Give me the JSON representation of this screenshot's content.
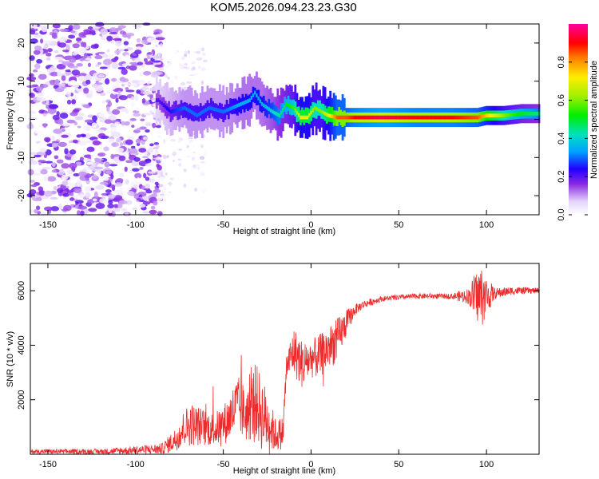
{
  "title": "KOM5.2026.094.23.23.G30",
  "colorbar": {
    "label": "Normalized spectral amplitude",
    "range": [
      0.0,
      1.0
    ],
    "ticks": [
      0.0,
      0.2,
      0.4,
      0.6,
      0.8
    ],
    "tick_labels": [
      "0.0",
      "0.2",
      "0.4",
      "0.6",
      "0.8"
    ]
  },
  "chart_data": [
    {
      "type": "heatmap",
      "name": "spectrogram",
      "xlabel": "Height of straight line (km)",
      "ylabel": "Frequency (Hz)",
      "xlim": [
        -160,
        130
      ],
      "ylim": [
        -25,
        25
      ],
      "xticks": [
        -150,
        -100,
        -50,
        0,
        50,
        100
      ],
      "xtick_labels": [
        "-150",
        "-100",
        "-50",
        "0",
        "50",
        "100"
      ],
      "yticks": [
        -20,
        -10,
        0,
        10,
        20
      ],
      "ytick_labels": [
        "-20",
        "-10",
        "0",
        "10",
        "20"
      ],
      "noise_region": {
        "x_range": [
          -160,
          -85
        ],
        "y_range": [
          -25,
          25
        ],
        "amplitude": 0.2
      },
      "ridge": {
        "x": [
          -87,
          -80,
          -72,
          -65,
          -58,
          -50,
          -45,
          -40,
          -35,
          -32,
          -28,
          -22,
          -18,
          -14,
          -10,
          -6,
          -2,
          2,
          6,
          10,
          15,
          20,
          25,
          40,
          60,
          80,
          95,
          100,
          110,
          120,
          130
        ],
        "freq": [
          5,
          2,
          3,
          1,
          3,
          2,
          3,
          4,
          5,
          7,
          4,
          2,
          1,
          4,
          3,
          0.5,
          0.5,
          3,
          2,
          1,
          0.5,
          0.5,
          0.5,
          0.5,
          0.5,
          0.5,
          0.5,
          1,
          1,
          1.5,
          1.5
        ],
        "amplitude": [
          0.2,
          0.25,
          0.3,
          0.3,
          0.3,
          0.3,
          0.32,
          0.35,
          0.35,
          0.35,
          0.35,
          0.4,
          0.45,
          0.5,
          0.55,
          0.7,
          0.7,
          0.6,
          0.6,
          0.7,
          0.85,
          0.85,
          0.9,
          0.95,
          0.9,
          0.9,
          0.85,
          0.75,
          0.6,
          0.5,
          0.45
        ]
      }
    },
    {
      "type": "line",
      "name": "snr",
      "color": "#ee2b2b",
      "xlabel": "Height of straight line (km)",
      "ylabel": "SNR (10 * v/v)",
      "xlim": [
        -160,
        130
      ],
      "ylim": [
        0,
        7000
      ],
      "xticks": [
        -150,
        -100,
        -50,
        0,
        50,
        100
      ],
      "xtick_labels": [
        "-150",
        "-100",
        "-50",
        "0",
        "50",
        "100"
      ],
      "yticks": [
        2000,
        4000,
        6000
      ],
      "ytick_labels": [
        "2000",
        "4000",
        "6000"
      ],
      "envelope": {
        "x": [
          -160,
          -120,
          -100,
          -85,
          -78,
          -72,
          -68,
          -62,
          -55,
          -48,
          -42,
          -36,
          -32,
          -28,
          -25,
          -20,
          -16,
          -14,
          -10,
          -5,
          0,
          5,
          10,
          15,
          20,
          25,
          30,
          40,
          60,
          80,
          90,
          93,
          97,
          100,
          105,
          115,
          130
        ],
        "mean": [
          100,
          100,
          150,
          200,
          500,
          1000,
          1100,
          1000,
          900,
          1200,
          1800,
          1400,
          2000,
          1500,
          1200,
          700,
          800,
          3200,
          3800,
          3300,
          3500,
          3600,
          3900,
          4200,
          4800,
          5300,
          5500,
          5700,
          5800,
          5800,
          5800,
          5800,
          5800,
          5800,
          5900,
          6000,
          6000
        ],
        "spread": [
          80,
          100,
          150,
          200,
          400,
          700,
          800,
          700,
          600,
          800,
          1100,
          1000,
          1400,
          1400,
          1100,
          600,
          600,
          500,
          900,
          900,
          700,
          800,
          800,
          800,
          500,
          200,
          150,
          100,
          100,
          100,
          300,
          800,
          1200,
          700,
          200,
          150,
          100
        ]
      }
    }
  ]
}
